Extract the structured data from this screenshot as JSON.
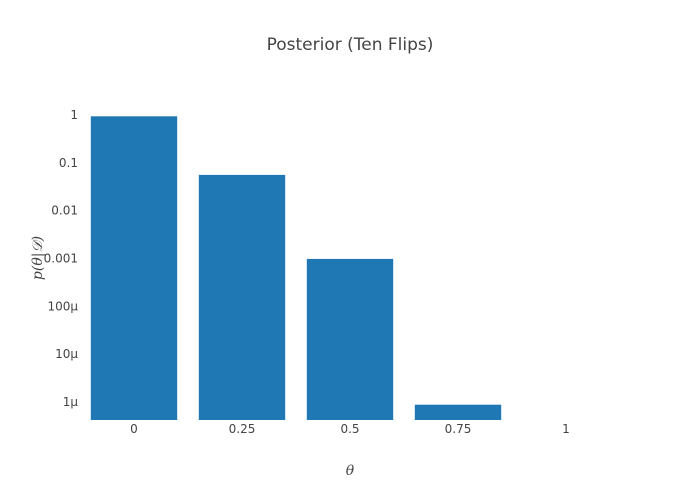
{
  "chart_data": {
    "type": "bar",
    "title": "Posterior (Ten Flips)",
    "xlabel": "θ",
    "ylabel": "p(θ|𝒟)",
    "y_scale": "log",
    "ylim": [
      1e-06,
      1
    ],
    "categories": [
      "0",
      "0.25",
      "0.5",
      "0.75",
      "1"
    ],
    "values": [
      0.94,
      0.056,
      0.00098,
      8.8e-07,
      0
    ],
    "y_ticks": [
      1,
      0.1,
      0.01,
      0.001,
      0.0001,
      1e-05,
      1e-06
    ],
    "y_tick_labels": [
      "1",
      "0.1",
      "0.01",
      "0.001",
      "100µ",
      "10µ",
      "1µ"
    ],
    "grid": false,
    "bar_color": "#1f77b4"
  }
}
